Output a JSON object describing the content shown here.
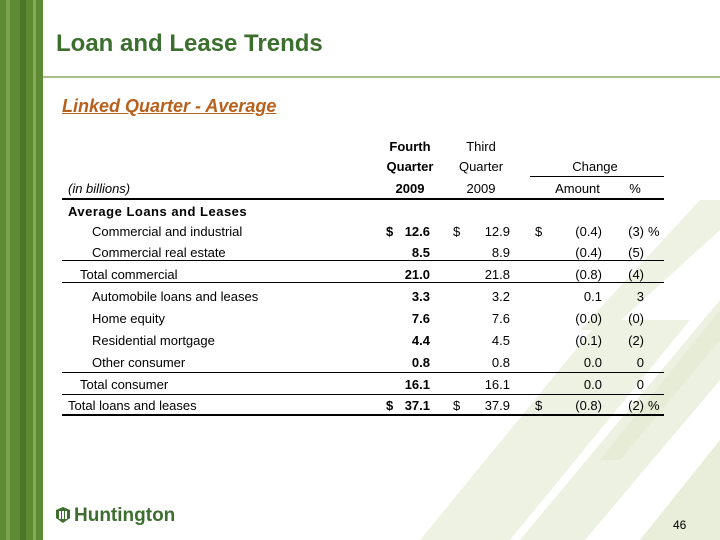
{
  "slide": {
    "title": "Loan and Lease Trends",
    "subtitle": "Linked Quarter - Average",
    "page_number": "46",
    "logo_text": "Huntington"
  },
  "colors": {
    "brand_green": "#3c6e2e",
    "subtitle_orange": "#b7611d",
    "bar_green": "#5e8a33"
  },
  "table": {
    "header": {
      "fourth_line1": "Fourth",
      "fourth_line2": "Quarter",
      "fourth_line3": "2009",
      "third_line1": "Third",
      "third_line2": "Quarter",
      "third_line3": "2009",
      "change": "Change",
      "amount": "Amount",
      "pct": "%",
      "units": "(in billions)"
    },
    "section_label": "Average Loans and Leases",
    "rows": [
      {
        "label": "Commercial and industrial",
        "q4_sign": "$",
        "q4": "12.6",
        "q3_sign": "$",
        "q3": "12.9",
        "amt_sign": "$",
        "amt": "(0.4)",
        "pct": "(3)",
        "pct_sign": "%"
      },
      {
        "label": "Commercial real estate",
        "q4_sign": "",
        "q4": "8.5",
        "q3_sign": "",
        "q3": "8.9",
        "amt_sign": "",
        "amt": "(0.4)",
        "pct": "(5)",
        "pct_sign": ""
      },
      {
        "label": "Total commercial",
        "q4_sign": "",
        "q4": "21.0",
        "q3_sign": "",
        "q3": "21.8",
        "amt_sign": "",
        "amt": "(0.8)",
        "pct": "(4)",
        "pct_sign": ""
      },
      {
        "label": "Automobile loans and leases",
        "q4_sign": "",
        "q4": "3.3",
        "q3_sign": "",
        "q3": "3.2",
        "amt_sign": "",
        "amt": "0.1",
        "pct": "3",
        "pct_sign": ""
      },
      {
        "label": "Home equity",
        "q4_sign": "",
        "q4": "7.6",
        "q3_sign": "",
        "q3": "7.6",
        "amt_sign": "",
        "amt": "(0.0)",
        "pct": "(0)",
        "pct_sign": ""
      },
      {
        "label": "Residential mortgage",
        "q4_sign": "",
        "q4": "4.4",
        "q3_sign": "",
        "q3": "4.5",
        "amt_sign": "",
        "amt": "(0.1)",
        "pct": "(2)",
        "pct_sign": ""
      },
      {
        "label": "Other consumer",
        "q4_sign": "",
        "q4": "0.8",
        "q3_sign": "",
        "q3": "0.8",
        "amt_sign": "",
        "amt": "0.0",
        "pct": "0",
        "pct_sign": ""
      },
      {
        "label": "Total consumer",
        "q4_sign": "",
        "q4": "16.1",
        "q3_sign": "",
        "q3": "16.1",
        "amt_sign": "",
        "amt": "0.0",
        "pct": "0",
        "pct_sign": ""
      },
      {
        "label": "Total loans and leases",
        "q4_sign": "$",
        "q4": "37.1",
        "q3_sign": "$",
        "q3": "37.9",
        "amt_sign": "$",
        "amt": "(0.8)",
        "pct": "(2)",
        "pct_sign": "%"
      }
    ]
  }
}
